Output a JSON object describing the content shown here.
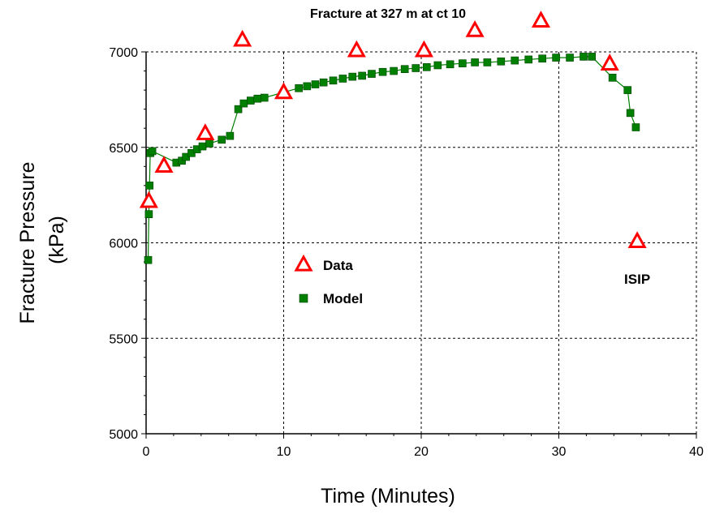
{
  "chart_data": {
    "type": "scatter",
    "title": "Fracture at 327 m at ct 10",
    "xlabel": "Time (Minutes)",
    "ylabel_lines": [
      "Fracture Pressure",
      "(kPa)"
    ],
    "xlim": [
      0,
      40
    ],
    "ylim": [
      5000,
      7000
    ],
    "xticks": [
      0,
      10,
      20,
      30,
      40
    ],
    "yticks": [
      5000,
      5500,
      6000,
      6500,
      7000
    ],
    "grid": true,
    "legend_position": "center-left",
    "series": [
      {
        "name": "Data",
        "marker": "triangle",
        "color": "#ff0000",
        "points": [
          [
            0.2,
            6215
          ],
          [
            1.3,
            6400
          ],
          [
            4.3,
            6570
          ],
          [
            7.0,
            7060
          ],
          [
            10.0,
            6785
          ],
          [
            15.3,
            7005
          ],
          [
            20.2,
            7005
          ],
          [
            23.9,
            7110
          ],
          [
            28.7,
            7160
          ],
          [
            33.7,
            6935
          ],
          [
            35.7,
            6005
          ]
        ]
      },
      {
        "name": "Model",
        "marker": "square",
        "color": "#008000",
        "line": true,
        "points": [
          [
            0.15,
            5910
          ],
          [
            0.2,
            6150
          ],
          [
            0.25,
            6300
          ],
          [
            0.3,
            6470
          ],
          [
            0.45,
            6480
          ],
          [
            2.2,
            6420
          ],
          [
            2.6,
            6430
          ],
          [
            2.9,
            6450
          ],
          [
            3.3,
            6470
          ],
          [
            3.7,
            6490
          ],
          [
            4.1,
            6505
          ],
          [
            4.6,
            6520
          ],
          [
            5.5,
            6540
          ],
          [
            6.1,
            6560
          ],
          [
            6.7,
            6700
          ],
          [
            7.1,
            6730
          ],
          [
            7.6,
            6745
          ],
          [
            8.1,
            6755
          ],
          [
            8.6,
            6760
          ],
          [
            11.1,
            6810
          ],
          [
            11.7,
            6820
          ],
          [
            12.3,
            6830
          ],
          [
            12.9,
            6840
          ],
          [
            13.6,
            6850
          ],
          [
            14.3,
            6860
          ],
          [
            15.0,
            6870
          ],
          [
            15.7,
            6875
          ],
          [
            16.4,
            6885
          ],
          [
            17.2,
            6895
          ],
          [
            18.0,
            6900
          ],
          [
            18.8,
            6910
          ],
          [
            19.6,
            6915
          ],
          [
            20.4,
            6920
          ],
          [
            21.2,
            6930
          ],
          [
            22.1,
            6935
          ],
          [
            23.0,
            6940
          ],
          [
            23.9,
            6945
          ],
          [
            24.8,
            6945
          ],
          [
            25.8,
            6950
          ],
          [
            26.8,
            6955
          ],
          [
            27.8,
            6960
          ],
          [
            28.8,
            6965
          ],
          [
            29.8,
            6970
          ],
          [
            30.8,
            6970
          ],
          [
            31.8,
            6975
          ],
          [
            32.4,
            6975
          ],
          [
            33.9,
            6865
          ],
          [
            35.0,
            6800
          ],
          [
            35.2,
            6680
          ],
          [
            35.6,
            6605
          ]
        ]
      }
    ],
    "annotations": [
      {
        "text": "ISIP",
        "x": 35.7,
        "y": 5810
      }
    ]
  }
}
